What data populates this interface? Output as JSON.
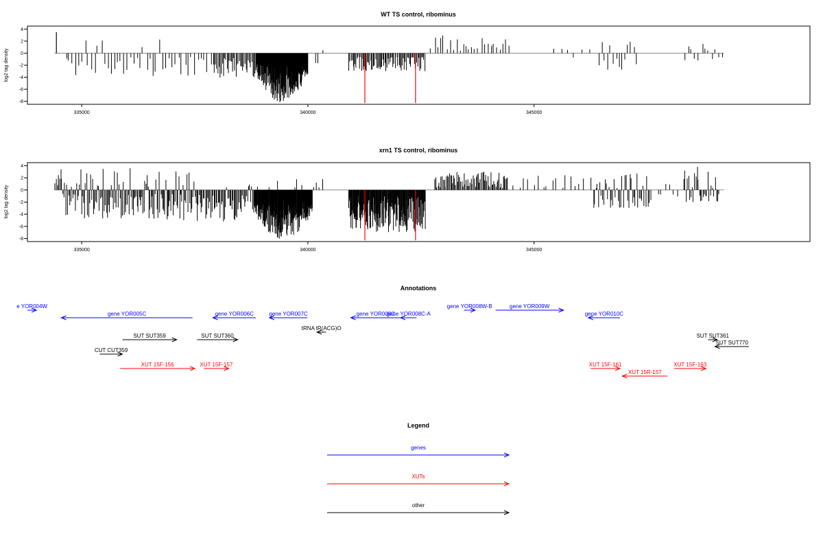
{
  "colors": {
    "genes": "#0000ff",
    "xuts": "#ff0000",
    "other": "#000000",
    "highlight": "#ff0000",
    "baseline": "#888888",
    "frame": "#000000"
  },
  "chart_data": [
    {
      "type": "bar",
      "title": "WT TS control, ribominus",
      "ylabel": "log2 tag density",
      "xlim": [
        333800,
        351100
      ],
      "ylim": [
        -8.5,
        4.5
      ],
      "xticks": [
        335000,
        340000,
        345000
      ],
      "xtick_labels": [
        "335000",
        "340000",
        "345000"
      ],
      "yticks": [
        4,
        2,
        0,
        -2,
        -4,
        -6,
        -8
      ],
      "ytick_labels": [
        "4",
        "2",
        "0",
        "-2",
        "-4",
        "-6",
        "-8"
      ],
      "data_range": [
        334400,
        349200
      ],
      "highlight_bars": [
        {
          "x": 341260,
          "value": -8.3
        },
        {
          "x": 342380,
          "value": -8.3
        }
      ],
      "bar_groups": [
        {
          "x": 334440,
          "values": [
            3.5
          ]
        },
        {
          "from": 334620,
          "to": 337900,
          "count": 46,
          "seed": 11,
          "pos_frac": 0.16,
          "pos_max": 2.6,
          "neg_min": 0.6,
          "neg_max": 3.8
        },
        {
          "from": 337900,
          "to": 338850,
          "count": 38,
          "seed": 12,
          "pos_frac": 0.0,
          "pos_max": 0,
          "neg_min": 0.8,
          "neg_max": 4.2
        },
        {
          "from": 338850,
          "to": 340000,
          "count": 190,
          "seed": 13,
          "pos_frac": 0.0,
          "pos_max": 0,
          "neg_min": 1.6,
          "neg_max": 8.2,
          "envelope": "hump"
        },
        {
          "from": 340150,
          "to": 340350,
          "count": 3,
          "seed": 14,
          "pos_frac": 0.4,
          "pos_max": 1.0,
          "neg_min": 0.5,
          "neg_max": 2.0
        },
        {
          "from": 340900,
          "to": 342600,
          "count": 75,
          "seed": 15,
          "pos_frac": 0.0,
          "pos_max": 0,
          "neg_min": 0.6,
          "neg_max": 3.0
        },
        {
          "from": 342700,
          "to": 344500,
          "count": 26,
          "seed": 16,
          "pos_frac": 1.0,
          "pos_max": 3.0,
          "neg_min": 0,
          "neg_max": 0
        },
        {
          "from": 345300,
          "to": 346400,
          "count": 6,
          "seed": 17,
          "pos_frac": 0.8,
          "pos_max": 1.4,
          "neg_min": 0.4,
          "neg_max": 1.2
        },
        {
          "from": 346400,
          "to": 347300,
          "count": 14,
          "seed": 18,
          "pos_frac": 0.3,
          "pos_max": 2.0,
          "neg_min": 0.8,
          "neg_max": 2.8
        },
        {
          "from": 348300,
          "to": 349200,
          "count": 12,
          "seed": 19,
          "pos_frac": 0.6,
          "pos_max": 2.2,
          "neg_min": 0.5,
          "neg_max": 1.3
        }
      ]
    },
    {
      "type": "bar",
      "title": "xrn1 TS control, ribominus",
      "ylabel": "log2 tag density",
      "xlim": [
        333800,
        351100
      ],
      "ylim": [
        -8.5,
        4.5
      ],
      "xticks": [
        335000,
        340000,
        345000
      ],
      "xtick_labels": [
        "335000",
        "340000",
        "345000"
      ],
      "yticks": [
        4,
        2,
        0,
        -2,
        -4,
        -6,
        -8
      ],
      "ytick_labels": [
        "4",
        "2",
        "0",
        "-2",
        "-4",
        "-6",
        "-8"
      ],
      "data_range": [
        334400,
        349200
      ],
      "highlight_bars": [
        {
          "x": 341260,
          "value": -8.3
        },
        {
          "x": 342380,
          "value": -8.3
        }
      ],
      "bar_groups": [
        {
          "from": 334400,
          "to": 334550,
          "count": 6,
          "seed": 21,
          "pos_frac": 1.0,
          "pos_max": 3.4,
          "neg_min": 0,
          "neg_max": 0
        },
        {
          "from": 334550,
          "to": 337400,
          "count": 130,
          "seed": 22,
          "pos_frac": 0.25,
          "pos_max": 3.6,
          "neg_min": 0.6,
          "neg_max": 5.0
        },
        {
          "from": 337400,
          "to": 338800,
          "count": 60,
          "seed": 23,
          "pos_frac": 0.1,
          "pos_max": 1.6,
          "neg_min": 0.6,
          "neg_max": 5.2
        },
        {
          "from": 338800,
          "to": 340100,
          "count": 220,
          "seed": 24,
          "pos_frac": 0.03,
          "pos_max": 2.0,
          "neg_min": 1.6,
          "neg_max": 8.2,
          "envelope": "hump"
        },
        {
          "from": 340100,
          "to": 340350,
          "count": 4,
          "seed": 25,
          "pos_frac": 1.0,
          "pos_max": 1.8,
          "neg_min": 0,
          "neg_max": 0
        },
        {
          "from": 340900,
          "to": 342600,
          "count": 170,
          "seed": 26,
          "pos_frac": 0.0,
          "pos_max": 0,
          "neg_min": 1.0,
          "neg_max": 7.0
        },
        {
          "from": 342800,
          "to": 344400,
          "count": 70,
          "seed": 27,
          "pos_frac": 1.0,
          "pos_max": 3.0,
          "neg_min": 0,
          "neg_max": 0
        },
        {
          "from": 344400,
          "to": 346300,
          "count": 18,
          "seed": 28,
          "pos_frac": 1.0,
          "pos_max": 2.6,
          "neg_min": 0,
          "neg_max": 0
        },
        {
          "from": 346300,
          "to": 347600,
          "count": 45,
          "seed": 29,
          "pos_frac": 0.35,
          "pos_max": 2.8,
          "neg_min": 0.8,
          "neg_max": 3.0
        },
        {
          "from": 347700,
          "to": 348200,
          "count": 6,
          "seed": 30,
          "pos_frac": 0.2,
          "pos_max": 1.0,
          "neg_min": 0.5,
          "neg_max": 1.5
        },
        {
          "from": 348300,
          "to": 349100,
          "count": 30,
          "seed": 31,
          "pos_frac": 0.6,
          "pos_max": 4.0,
          "neg_min": 0.6,
          "neg_max": 2.0
        }
      ]
    }
  ],
  "annotations": {
    "title": "Annotations",
    "items": [
      {
        "label": "e YOR004W",
        "type": "gene",
        "dir": 1,
        "from": 333800,
        "to": 334000
      },
      {
        "label": "gene YOR005C",
        "type": "gene",
        "dir": -1,
        "from": 334550,
        "to": 337450
      },
      {
        "label": "gene YOR006C",
        "type": "gene",
        "dir": -1,
        "from": 337900,
        "to": 338850
      },
      {
        "label": "gene YOR007C",
        "type": "gene",
        "dir": -1,
        "from": 339150,
        "to": 339990
      },
      {
        "label": "gene YOR008C",
        "type": "gene",
        "dir": -1,
        "from": 340950,
        "to": 342050
      },
      {
        "label": "gene YOR008C-A",
        "type": "gene",
        "dir": -1,
        "from": 342050,
        "to": 342400
      },
      {
        "label": "gene YOR008W-B",
        "type": "gene",
        "dir": 1,
        "from": 343450,
        "to": 343700
      },
      {
        "label": "gene YOR009W",
        "type": "gene",
        "dir": 1,
        "from": 344150,
        "to": 345650
      },
      {
        "label": "gene YOR010C",
        "type": "gene",
        "dir": -1,
        "from": 346200,
        "to": 346900
      },
      {
        "label": "tRNA tR(ACG)O",
        "type": "other",
        "dir": -1,
        "from": 340200,
        "to": 340400
      },
      {
        "label": "SUT SUT359",
        "type": "other",
        "dir": 1,
        "from": 335900,
        "to": 337100
      },
      {
        "label": "SUT SUT360",
        "type": "other",
        "dir": 1,
        "from": 337550,
        "to": 338450
      },
      {
        "label": "CUT CUT359",
        "type": "other",
        "dir": 1,
        "from": 335400,
        "to": 335900
      },
      {
        "label": "SUT SUT361",
        "type": "other",
        "dir": 1,
        "from": 348850,
        "to": 349050
      },
      {
        "label": "SUT SUT770",
        "type": "other",
        "dir": -1,
        "from": 349000,
        "to": 349750
      },
      {
        "label": "XUT 15F-156",
        "type": "xut",
        "dir": 1,
        "from": 335850,
        "to": 337500
      },
      {
        "label": "XUT 15F-157",
        "type": "xut",
        "dir": 1,
        "from": 337700,
        "to": 338250
      },
      {
        "label": "XUT 15F-161",
        "type": "xut",
        "dir": 1,
        "from": 346250,
        "to": 346900
      },
      {
        "label": "XUT 15R-157",
        "type": "xut",
        "dir": -1,
        "from": 346950,
        "to": 347950
      },
      {
        "label": "XUT 15F-163",
        "type": "xut",
        "dir": 1,
        "from": 348100,
        "to": 348800
      }
    ]
  },
  "legend": {
    "title": "Legend",
    "items": [
      {
        "label": "genes",
        "type": "gene"
      },
      {
        "label": "XUTs",
        "type": "xut"
      },
      {
        "label": "other",
        "type": "other"
      }
    ]
  }
}
